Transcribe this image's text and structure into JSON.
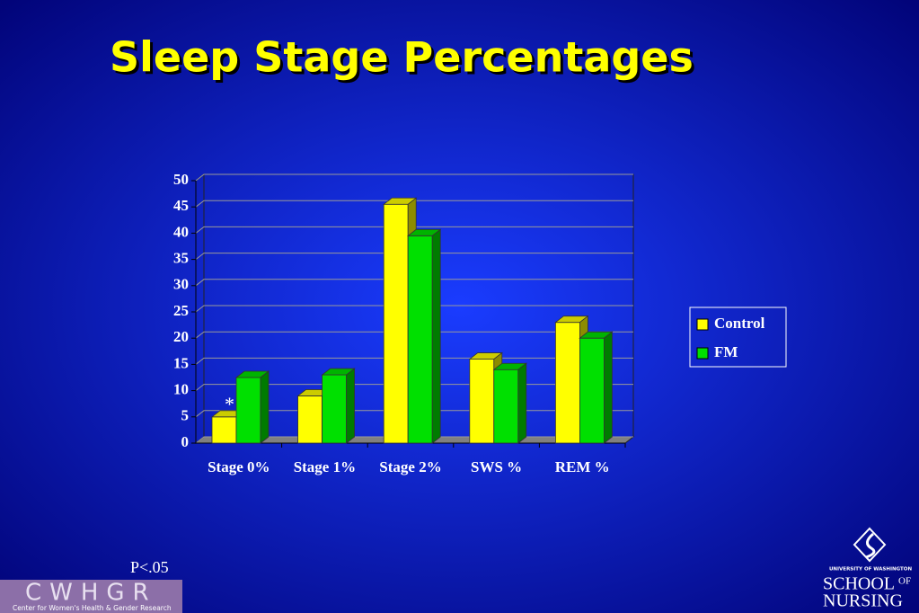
{
  "chart_data": {
    "type": "bar",
    "title": "Sleep Stage Percentages",
    "categories": [
      "Stage 0%",
      "Stage 1%",
      "Stage 2%",
      "SWS %",
      "REM %"
    ],
    "series": [
      {
        "name": "Control",
        "color": "#ffff00",
        "values": [
          5,
          9,
          45.5,
          16,
          23
        ]
      },
      {
        "name": "FM",
        "color": "#00e000",
        "values": [
          12.5,
          13,
          39.5,
          14,
          20
        ]
      }
    ],
    "ylim": [
      0,
      50
    ],
    "yticks": [
      0,
      5,
      10,
      15,
      20,
      25,
      30,
      35,
      40,
      45,
      50
    ],
    "grid": true,
    "legend": "right",
    "annotations": [
      "*",
      "P<.05"
    ]
  },
  "logos": {
    "cwhgr": {
      "title": "CWHGR",
      "subtitle": "Center for Women's Health & Gender Research"
    },
    "uw": {
      "top": "UNIVERSITY OF WASHINGTON",
      "school": "SCHOOL",
      "of": "OF",
      "nursing": "NURSING"
    }
  }
}
